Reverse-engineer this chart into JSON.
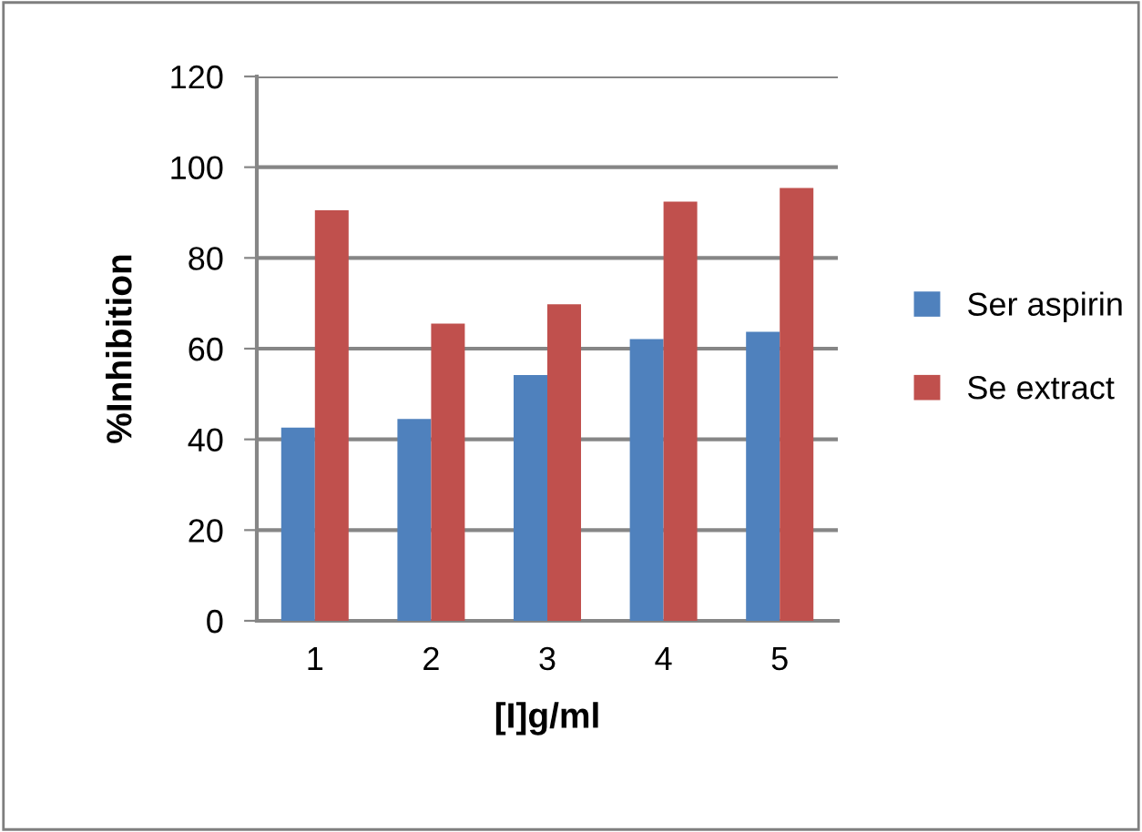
{
  "chart_data": {
    "type": "bar",
    "xlabel": "[I]g/ml",
    "ylabel": "%Inhibition",
    "categories": [
      "1",
      "2",
      "3",
      "4",
      "5"
    ],
    "series": [
      {
        "name": "Ser aspirin",
        "color": "#4f81bd",
        "values": [
          42.6,
          44.5,
          54.2,
          62.1,
          63.7
        ]
      },
      {
        "name": "Se extract",
        "color": "#c0504d",
        "values": [
          90.5,
          65.5,
          69.8,
          92.4,
          95.4
        ]
      }
    ],
    "ylim": [
      0,
      120
    ],
    "yticks": [
      0,
      20,
      40,
      60,
      80,
      100,
      120
    ],
    "grid": "y",
    "legend": "right"
  }
}
